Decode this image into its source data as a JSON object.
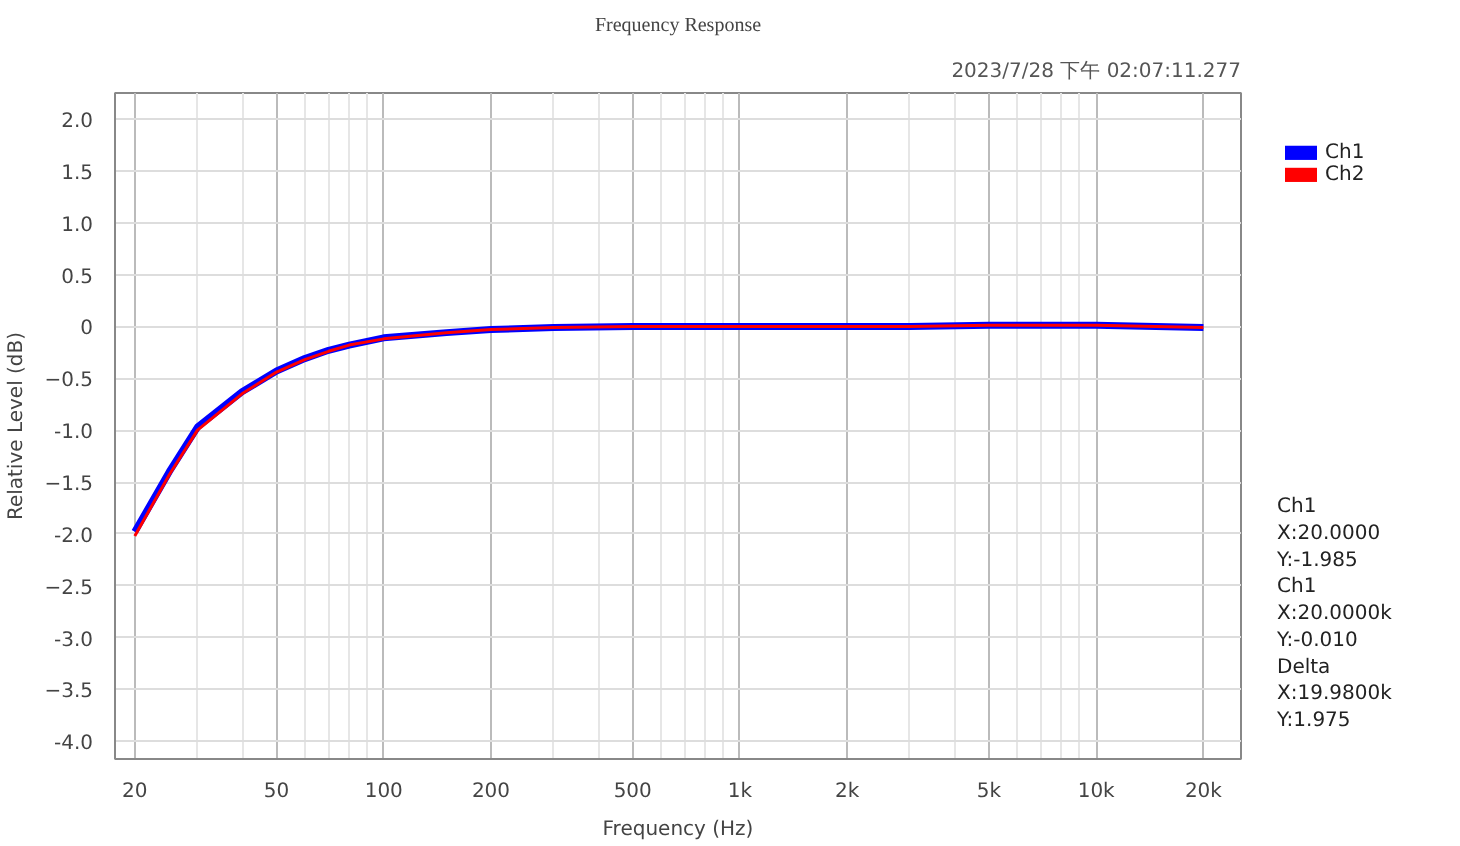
{
  "chart_data": {
    "type": "line",
    "title": "Frequency Response",
    "subtitle": "2023/7/28 下午 02:07:11.277",
    "xlabel": "Frequency (Hz)",
    "ylabel": "Relative Level (dB)",
    "x": [
      20,
      25,
      30,
      40,
      50,
      60,
      70,
      80,
      100,
      150,
      200,
      300,
      500,
      1000,
      3000,
      5000,
      10000,
      20000
    ],
    "series": [
      {
        "name": "Ch1",
        "color": "#0000ff",
        "values": [
          -1.98,
          -1.4,
          -0.97,
          -0.63,
          -0.43,
          -0.31,
          -0.23,
          -0.18,
          -0.11,
          -0.06,
          -0.03,
          -0.01,
          0,
          0,
          0,
          0.01,
          0.01,
          -0.01
        ]
      },
      {
        "name": "Ch2",
        "color": "#ff0000",
        "values": [
          -2.02,
          -1.43,
          -1.0,
          -0.65,
          -0.44,
          -0.32,
          -0.24,
          -0.18,
          -0.12,
          -0.06,
          -0.03,
          -0.01,
          0,
          0,
          0,
          0.01,
          0.01,
          -0.01
        ]
      }
    ],
    "log": "x",
    "xlim": [
      17.6,
      25500
    ],
    "ylim": [
      -4.17,
      2.25
    ],
    "xticks": [
      20,
      50,
      100,
      200,
      500,
      {
        "value": 1000,
        "label": "1k"
      },
      {
        "value": 2000,
        "label": "2k"
      },
      {
        "value": 5000,
        "label": "5k"
      },
      {
        "value": 10000,
        "label": "10k"
      },
      {
        "value": 20000,
        "label": "20k"
      }
    ],
    "yticks": [
      {
        "value": 2.0,
        "label": "2.0"
      },
      1.5,
      {
        "value": 1.0,
        "label": "1.0"
      },
      0.5,
      0,
      -0.5,
      {
        "value": -1.0,
        "label": "-1.0"
      },
      -1.5,
      {
        "value": -2.0,
        "label": "-2.0"
      },
      -2.5,
      {
        "value": -3.0,
        "label": "-3.0"
      },
      -3.5,
      {
        "value": -4.0,
        "label": "-4.0"
      }
    ],
    "grid": true,
    "legend": "top right",
    "line_style": "solid",
    "annotations": [
      "Ch1",
      "X:20.0000",
      "Y:-1.985",
      "Ch1",
      "X:20.0000k",
      "Y:-0.010",
      "Delta",
      "X:19.9800k",
      "Y:1.975"
    ]
  }
}
